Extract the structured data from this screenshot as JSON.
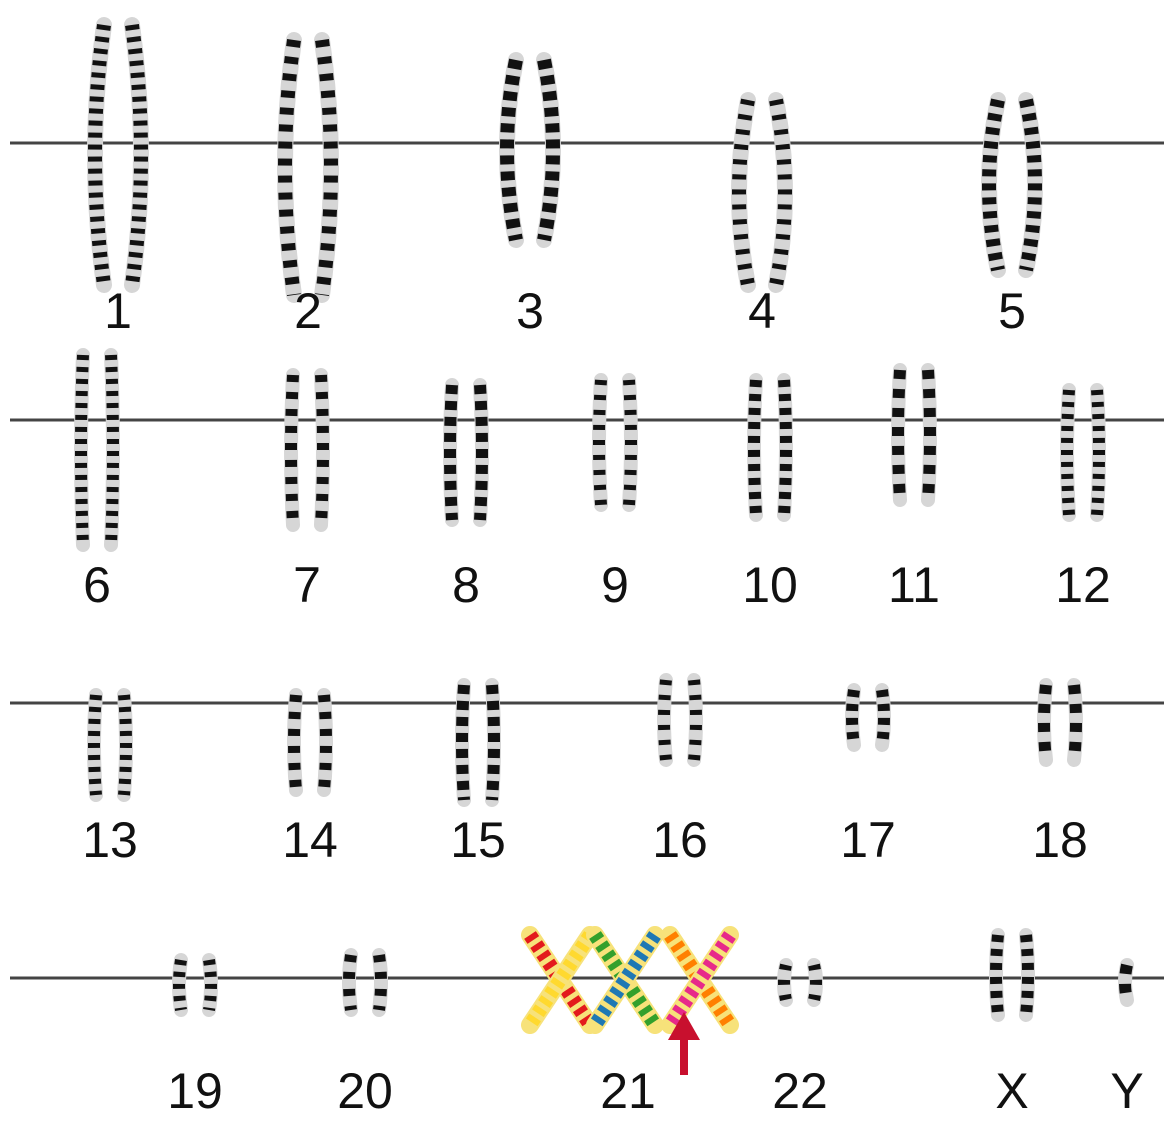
{
  "rows": [
    {
      "labels": [
        "1",
        "2",
        "3",
        "4",
        "5"
      ]
    },
    {
      "labels": [
        "6",
        "7",
        "8",
        "9",
        "10",
        "11",
        "12"
      ]
    },
    {
      "labels": [
        "13",
        "14",
        "15",
        "16",
        "17",
        "18"
      ]
    },
    {
      "labels": [
        "19",
        "20",
        "21",
        "22",
        "X",
        "Y"
      ]
    }
  ]
}
